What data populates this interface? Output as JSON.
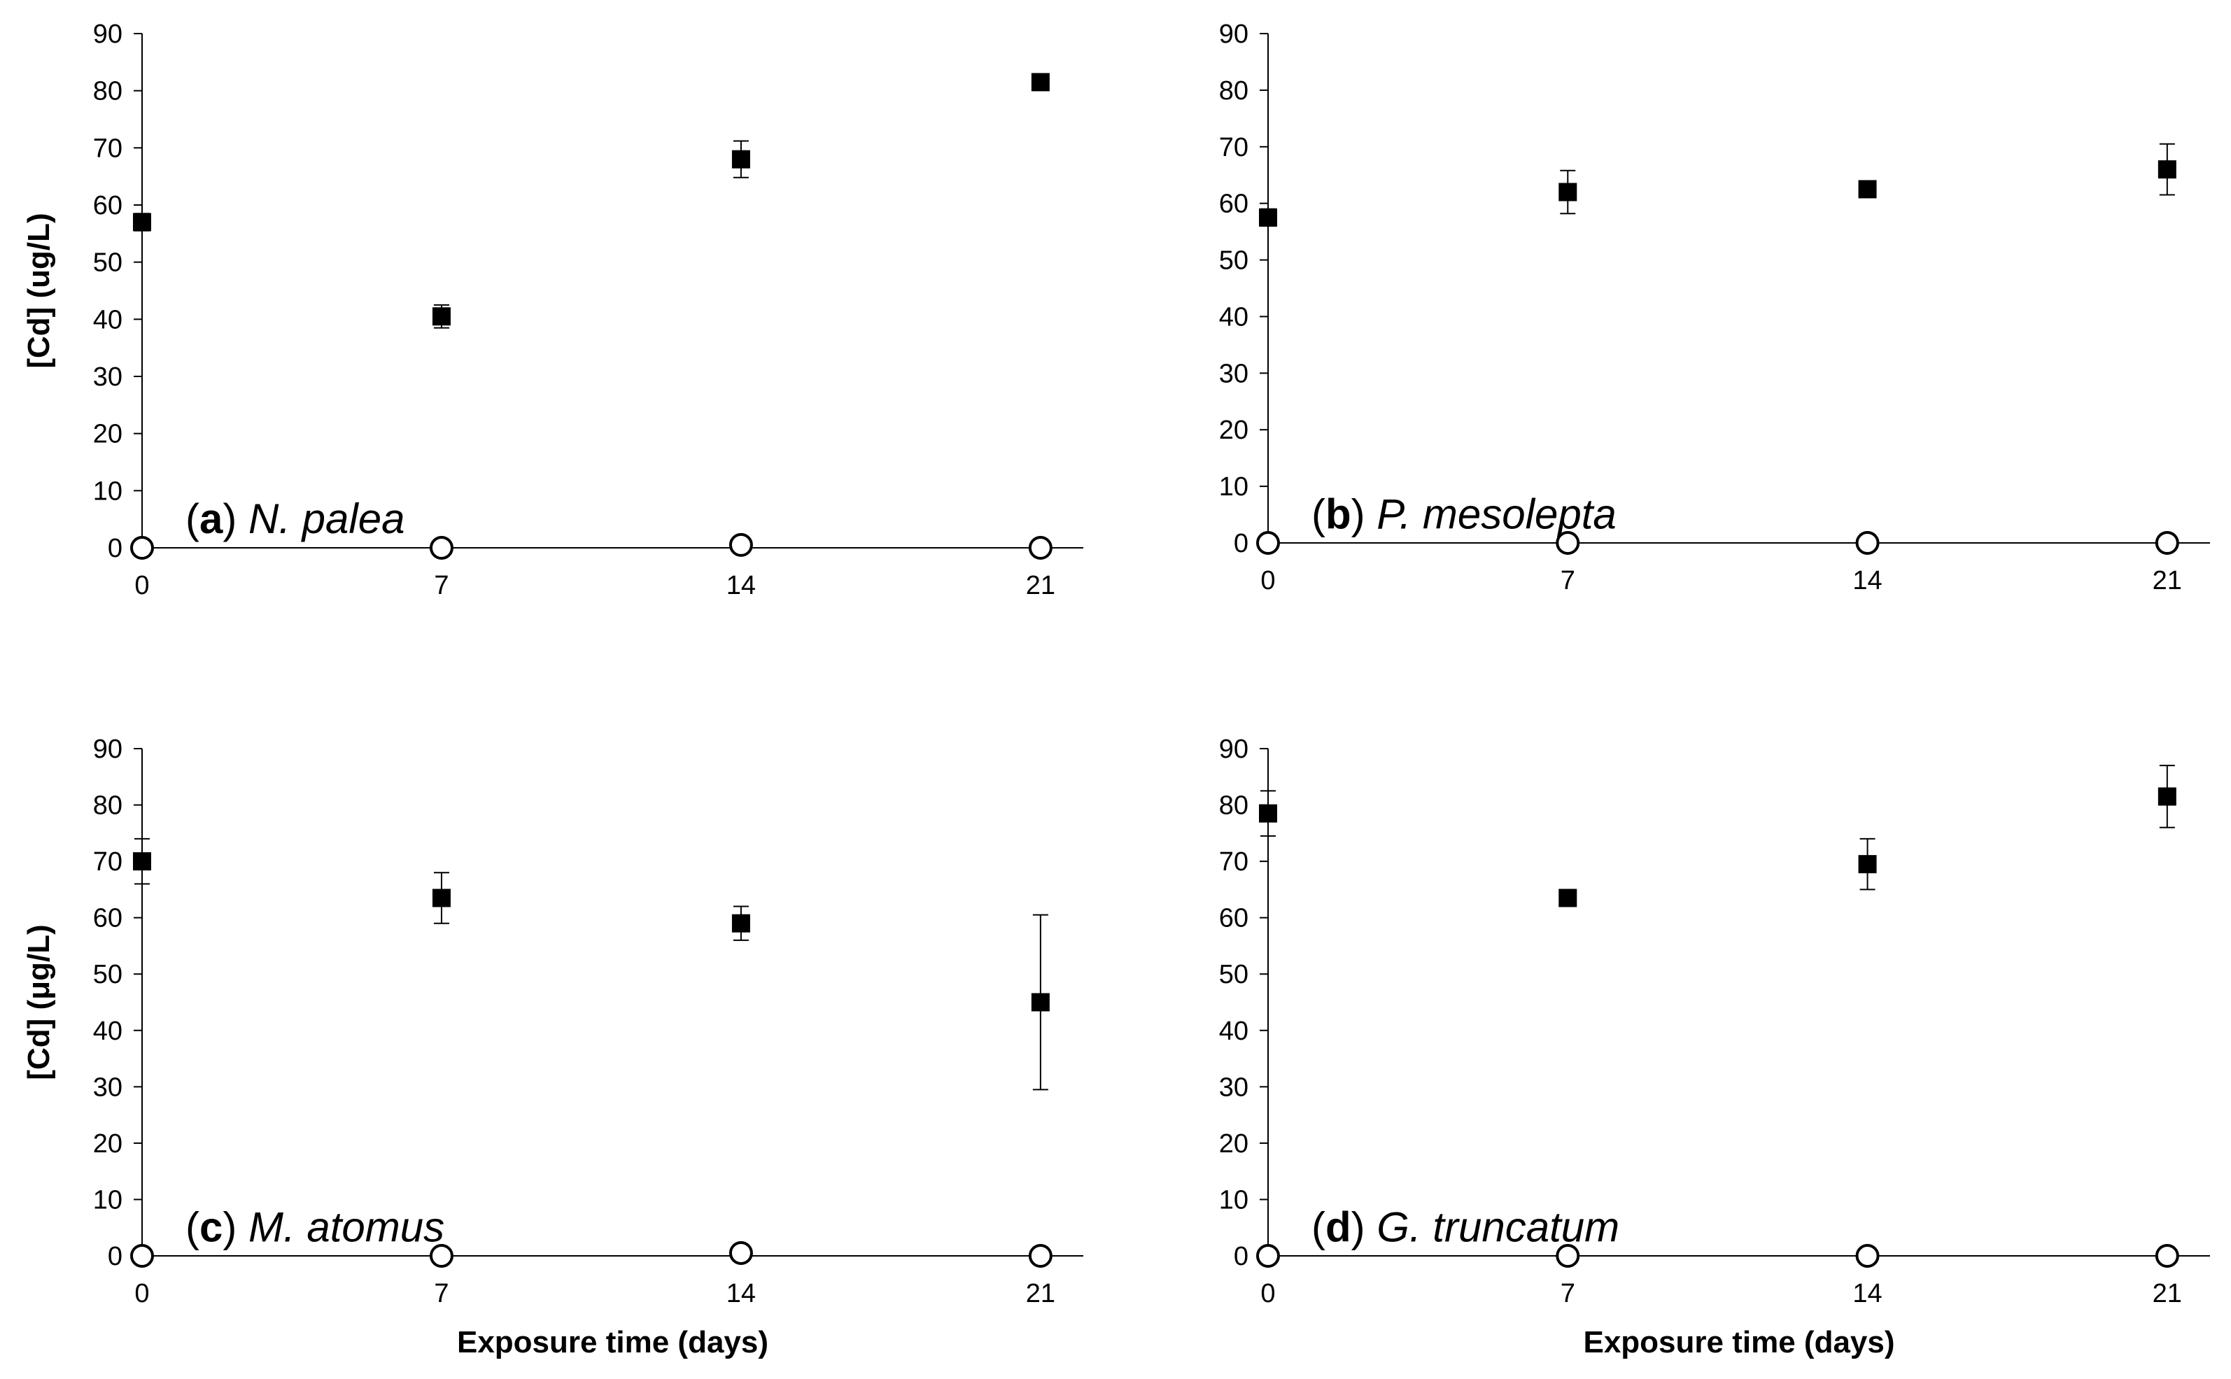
{
  "colors": {
    "axis": "#000000",
    "marker": "#000000",
    "background": "#ffffff"
  },
  "chart_data": [
    {
      "type": "scatter",
      "panel_letter": "a",
      "species": "N. palea",
      "title": "",
      "xlabel": "",
      "ylabel": "[Cd] (ug/L)",
      "x_ticks": [
        0,
        7,
        14,
        21
      ],
      "xlim": [
        0,
        22
      ],
      "ylim": [
        0,
        90
      ],
      "y_ticks": [
        0,
        10,
        20,
        30,
        40,
        50,
        60,
        70,
        80,
        90
      ],
      "grid": false,
      "series": [
        {
          "marker": "filled-square",
          "x": [
            0,
            7,
            14,
            21
          ],
          "y": [
            57,
            40.5,
            68,
            81.5
          ],
          "err": [
            1.5,
            2,
            3.2,
            1
          ]
        },
        {
          "marker": "open-circle",
          "x": [
            0,
            7,
            14,
            21
          ],
          "y": [
            0,
            0,
            0.5,
            0
          ],
          "err": [
            0,
            0,
            0,
            0
          ]
        }
      ]
    },
    {
      "type": "scatter",
      "panel_letter": "b",
      "species": "P. mesolepta",
      "title": "",
      "xlabel": "",
      "ylabel": "",
      "x_ticks": [
        0,
        7,
        14,
        21
      ],
      "xlim": [
        0,
        22
      ],
      "ylim": [
        0,
        90
      ],
      "y_ticks": [
        0,
        10,
        20,
        30,
        40,
        50,
        60,
        70,
        80,
        90
      ],
      "grid": false,
      "series": [
        {
          "marker": "filled-square",
          "x": [
            0,
            7,
            14,
            21
          ],
          "y": [
            57.5,
            62,
            62.5,
            66
          ],
          "err": [
            1.5,
            3.8,
            0.5,
            4.5
          ]
        },
        {
          "marker": "open-circle",
          "x": [
            0,
            7,
            14,
            21
          ],
          "y": [
            0,
            0,
            0,
            0
          ],
          "err": [
            0,
            0,
            0,
            0
          ]
        }
      ]
    },
    {
      "type": "scatter",
      "panel_letter": "c",
      "species": "M. atomus",
      "title": "",
      "xlabel": "Exposure time (days)",
      "ylabel": "[Cd] (μg/L)",
      "x_ticks": [
        0,
        7,
        14,
        21
      ],
      "xlim": [
        0,
        22
      ],
      "ylim": [
        0,
        90
      ],
      "y_ticks": [
        0,
        10,
        20,
        30,
        40,
        50,
        60,
        70,
        80,
        90
      ],
      "grid": false,
      "series": [
        {
          "marker": "filled-square",
          "x": [
            0,
            7,
            14,
            21
          ],
          "y": [
            70,
            63.5,
            59,
            45
          ],
          "err": [
            4,
            4.5,
            3,
            15.5
          ]
        },
        {
          "marker": "open-circle",
          "x": [
            0,
            7,
            14,
            21
          ],
          "y": [
            0,
            0,
            0.5,
            0
          ],
          "err": [
            0,
            0,
            0,
            0
          ]
        }
      ]
    },
    {
      "type": "scatter",
      "panel_letter": "d",
      "species": "G. truncatum",
      "title": "",
      "xlabel": "Exposure time (days)",
      "ylabel": "",
      "x_ticks": [
        0,
        7,
        14,
        21
      ],
      "xlim": [
        0,
        22
      ],
      "ylim": [
        0,
        90
      ],
      "y_ticks": [
        0,
        10,
        20,
        30,
        40,
        50,
        60,
        70,
        80,
        90
      ],
      "grid": false,
      "series": [
        {
          "marker": "filled-square",
          "x": [
            0,
            7,
            14,
            21
          ],
          "y": [
            78.5,
            63.5,
            69.5,
            81.5
          ],
          "err": [
            4,
            0.5,
            4.5,
            5.5
          ]
        },
        {
          "marker": "open-circle",
          "x": [
            0,
            7,
            14,
            21
          ],
          "y": [
            0,
            0,
            0,
            0
          ],
          "err": [
            0,
            0,
            0,
            0
          ]
        }
      ]
    }
  ]
}
